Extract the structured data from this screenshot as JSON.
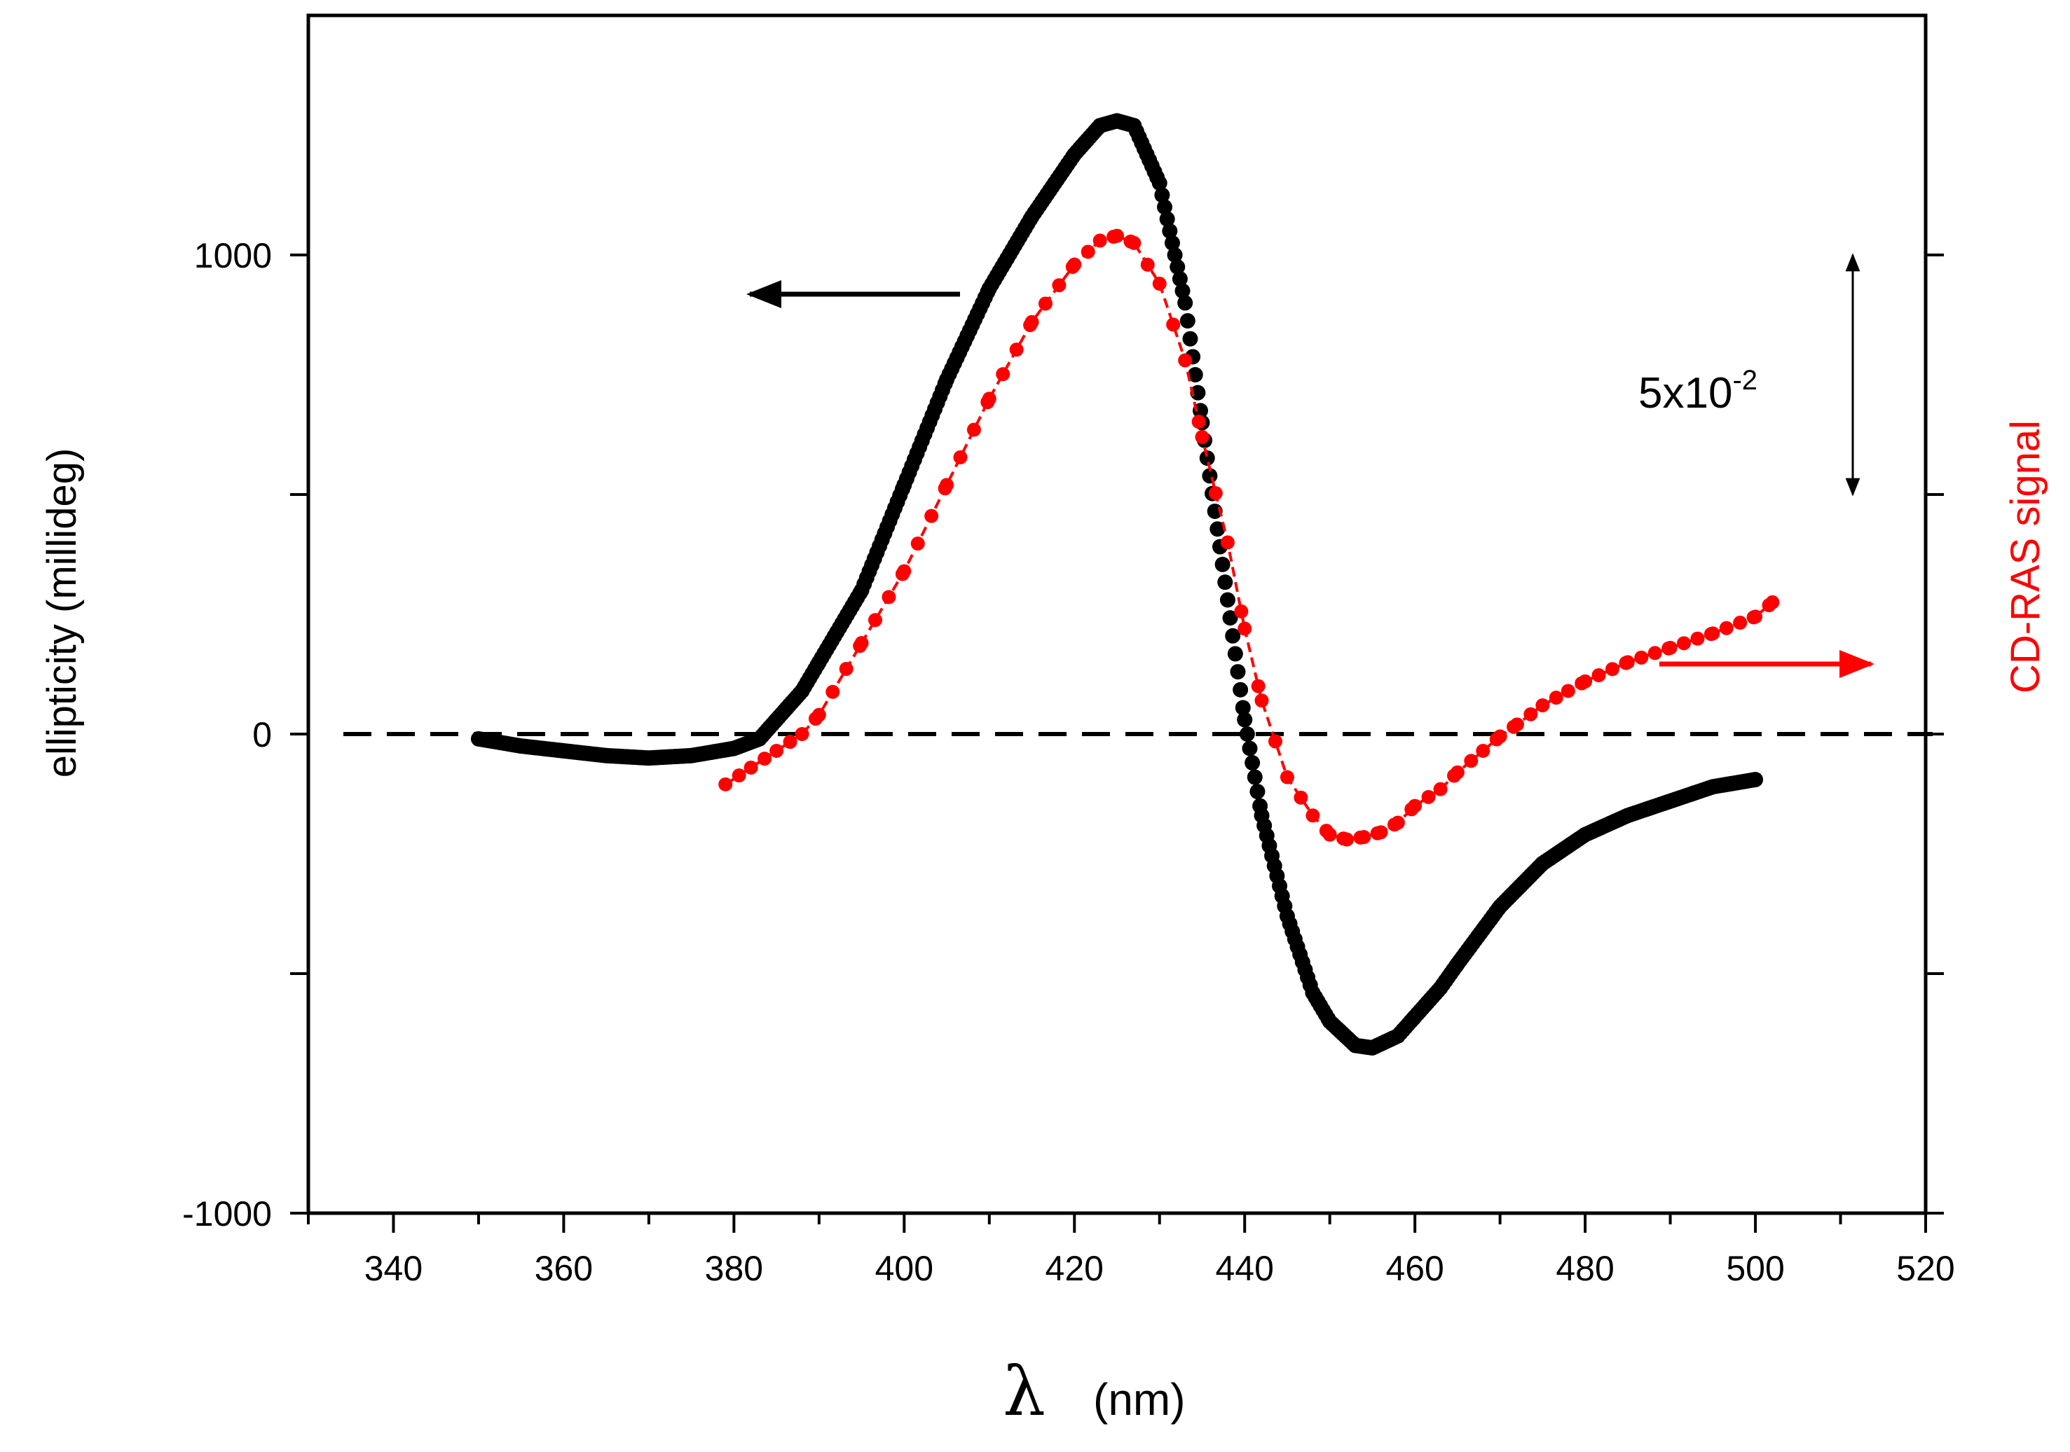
{
  "chart_data": {
    "type": "scatter",
    "xlabel_symbol": "λ",
    "xlabel_unit": "(nm)",
    "ylabel_left": "ellipticity (millideg)",
    "ylabel_right": "CD-RAS signal",
    "xlim": [
      330,
      520
    ],
    "ylim_left": [
      -1000,
      1500
    ],
    "x_ticks": [
      340,
      360,
      380,
      400,
      420,
      440,
      460,
      480,
      500,
      520
    ],
    "y_ticks_left_labeled": [
      -1000,
      0,
      1000
    ],
    "y_minor_ticks": [
      -500,
      500
    ],
    "zero_line": "dashed",
    "scale_bar_label": "5x10",
    "scale_bar_exponent": "-2",
    "scale_bar_span_left_units": [
      500,
      1000
    ],
    "colors": {
      "ellipticity": "#000000",
      "cd_ras": "#ff0000"
    },
    "series": [
      {
        "name": "ellipticity",
        "axis": "left",
        "marker": "dense-dots",
        "x": [
          350,
          355,
          360,
          365,
          370,
          375,
          380,
          383,
          385,
          388,
          390,
          395,
          400,
          405,
          410,
          415,
          420,
          423,
          425,
          427,
          430,
          433,
          435,
          438,
          440,
          442,
          445,
          448,
          450,
          453,
          455,
          458,
          460,
          463,
          465,
          470,
          475,
          480,
          485,
          490,
          495,
          500
        ],
        "values": [
          -10,
          -25,
          -35,
          -45,
          -50,
          -45,
          -30,
          -10,
          30,
          90,
          150,
          300,
          520,
          740,
          930,
          1080,
          1210,
          1270,
          1280,
          1270,
          1150,
          900,
          650,
          280,
          30,
          -170,
          -380,
          -540,
          -600,
          -650,
          -655,
          -630,
          -590,
          -530,
          -480,
          -360,
          -270,
          -210,
          -170,
          -140,
          -110,
          -95
        ]
      },
      {
        "name": "CD-RAS signal",
        "axis": "right",
        "marker": "dots-dash",
        "x": [
          379,
          382,
          385,
          388,
          390,
          395,
          400,
          405,
          410,
          415,
          420,
          423,
          425,
          427,
          430,
          433,
          435,
          438,
          440,
          442,
          445,
          448,
          450,
          452,
          454,
          456,
          458,
          460,
          463,
          465,
          468,
          470,
          472,
          475,
          478,
          480,
          485,
          490,
          495,
          500,
          502
        ],
        "values": [
          -105,
          -70,
          -35,
          0,
          40,
          190,
          340,
          520,
          700,
          860,
          980,
          1030,
          1040,
          1025,
          940,
          780,
          620,
          400,
          220,
          70,
          -90,
          -170,
          -210,
          -220,
          -215,
          -205,
          -185,
          -150,
          -115,
          -80,
          -35,
          -5,
          20,
          60,
          90,
          110,
          150,
          180,
          210,
          245,
          275
        ]
      }
    ]
  }
}
